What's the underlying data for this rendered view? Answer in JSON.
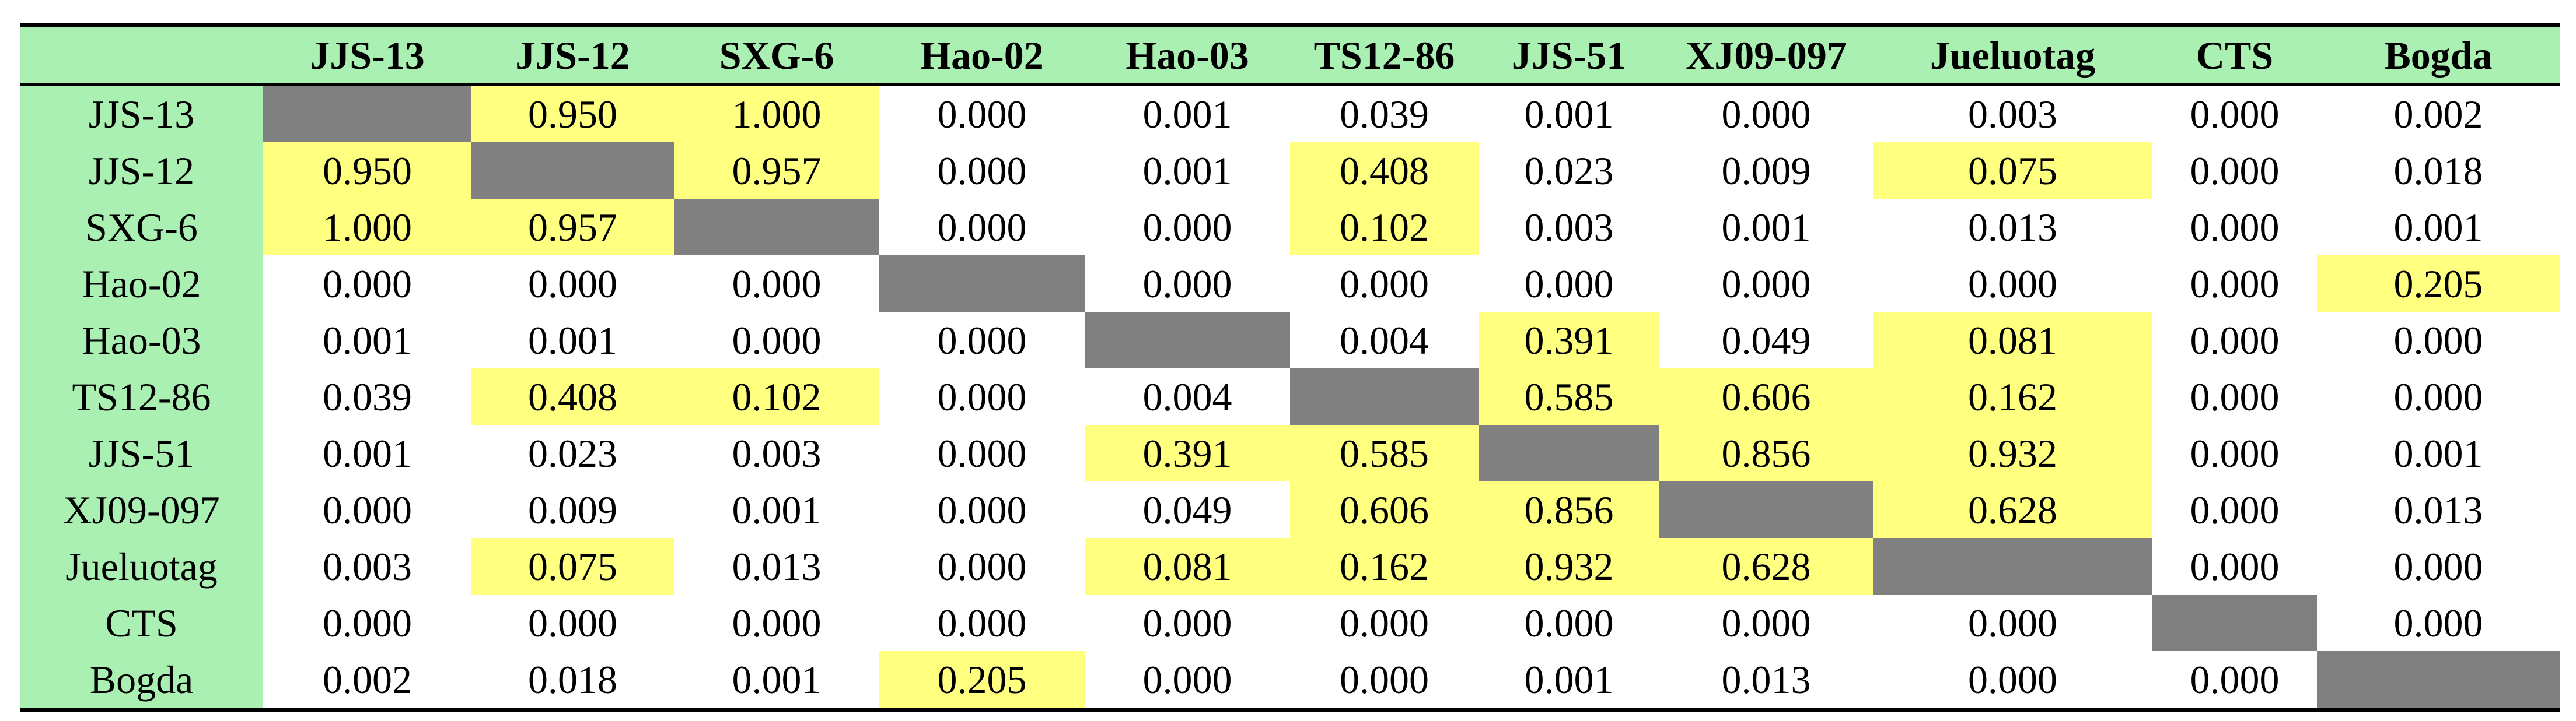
{
  "table": {
    "columns": [
      "JJS-13",
      "JJS-12",
      "SXG-6",
      "Hao-02",
      "Hao-03",
      "TS12-86",
      "JJS-51",
      "XJ09-097",
      "Jueluotag",
      "CTS",
      "Bogda"
    ],
    "rows": [
      {
        "label": "JJS-13",
        "cells": [
          null,
          "0.950",
          "1.000",
          "0.000",
          "0.001",
          "0.039",
          "0.001",
          "0.000",
          "0.003",
          "0.000",
          "0.002"
        ]
      },
      {
        "label": "JJS-12",
        "cells": [
          "0.950",
          null,
          "0.957",
          "0.000",
          "0.001",
          "0.408",
          "0.023",
          "0.009",
          "0.075",
          "0.000",
          "0.018"
        ]
      },
      {
        "label": "SXG-6",
        "cells": [
          "1.000",
          "0.957",
          null,
          "0.000",
          "0.000",
          "0.102",
          "0.003",
          "0.001",
          "0.013",
          "0.000",
          "0.001"
        ]
      },
      {
        "label": "Hao-02",
        "cells": [
          "0.000",
          "0.000",
          "0.000",
          null,
          "0.000",
          "0.000",
          "0.000",
          "0.000",
          "0.000",
          "0.000",
          "0.205"
        ]
      },
      {
        "label": "Hao-03",
        "cells": [
          "0.001",
          "0.001",
          "0.000",
          "0.000",
          null,
          "0.004",
          "0.391",
          "0.049",
          "0.081",
          "0.000",
          "0.000"
        ]
      },
      {
        "label": "TS12-86",
        "cells": [
          "0.039",
          "0.408",
          "0.102",
          "0.000",
          "0.004",
          null,
          "0.585",
          "0.606",
          "0.162",
          "0.000",
          "0.000"
        ]
      },
      {
        "label": "JJS-51",
        "cells": [
          "0.001",
          "0.023",
          "0.003",
          "0.000",
          "0.391",
          "0.585",
          null,
          "0.856",
          "0.932",
          "0.000",
          "0.001"
        ]
      },
      {
        "label": "XJ09-097",
        "cells": [
          "0.000",
          "0.009",
          "0.001",
          "0.000",
          "0.049",
          "0.606",
          "0.856",
          null,
          "0.628",
          "0.000",
          "0.013"
        ]
      },
      {
        "label": "Jueluotag",
        "cells": [
          "0.003",
          "0.075",
          "0.013",
          "0.000",
          "0.081",
          "0.162",
          "0.932",
          "0.628",
          null,
          "0.000",
          "0.000"
        ]
      },
      {
        "label": "CTS",
        "cells": [
          "0.000",
          "0.000",
          "0.000",
          "0.000",
          "0.000",
          "0.000",
          "0.000",
          "0.000",
          "0.000",
          null,
          "0.000"
        ]
      },
      {
        "label": "Bogda",
        "cells": [
          "0.002",
          "0.018",
          "0.001",
          "0.205",
          "0.000",
          "0.000",
          "0.001",
          "0.013",
          "0.000",
          "0.000",
          null
        ]
      }
    ]
  }
}
